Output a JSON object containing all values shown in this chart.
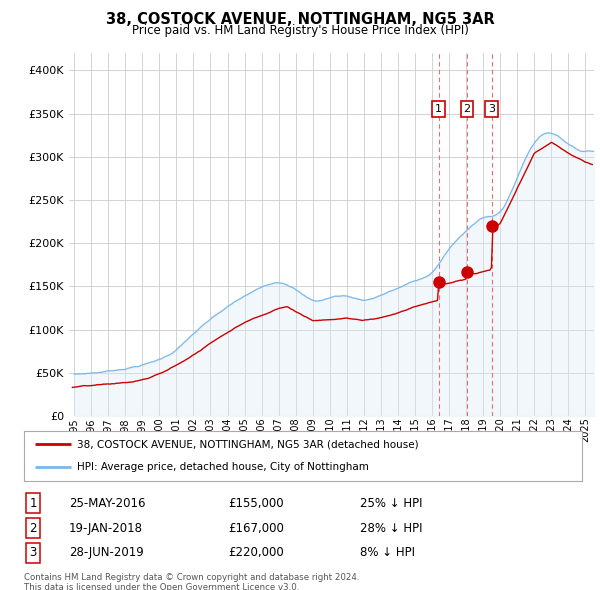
{
  "title": "38, COSTOCK AVENUE, NOTTINGHAM, NG5 3AR",
  "subtitle": "Price paid vs. HM Land Registry's House Price Index (HPI)",
  "hpi_label": "HPI: Average price, detached house, City of Nottingham",
  "property_label": "38, COSTOCK AVENUE, NOTTINGHAM, NG5 3AR (detached house)",
  "footnote": "Contains HM Land Registry data © Crown copyright and database right 2024.\nThis data is licensed under the Open Government Licence v3.0.",
  "transactions": [
    {
      "num": 1,
      "date": "25-MAY-2016",
      "price": 155000,
      "year": 2016.38,
      "hpi_pct": "25% ↓ HPI"
    },
    {
      "num": 2,
      "date": "19-JAN-2018",
      "price": 167000,
      "year": 2018.05,
      "hpi_pct": "28% ↓ HPI"
    },
    {
      "num": 3,
      "date": "28-JUN-2019",
      "price": 220000,
      "year": 2019.49,
      "hpi_pct": "8% ↓ HPI"
    }
  ],
  "hpi_color": "#7ab8e8",
  "hpi_fill_color": "#daeaf8",
  "property_color": "#cc0000",
  "dashed_color": "#e06060",
  "background_color": "#ffffff",
  "grid_color": "#cccccc",
  "ylim": [
    0,
    420000
  ],
  "yticks": [
    0,
    50000,
    100000,
    150000,
    200000,
    250000,
    300000,
    350000,
    400000
  ],
  "xlim_start": 1994.7,
  "xlim_end": 2025.5
}
